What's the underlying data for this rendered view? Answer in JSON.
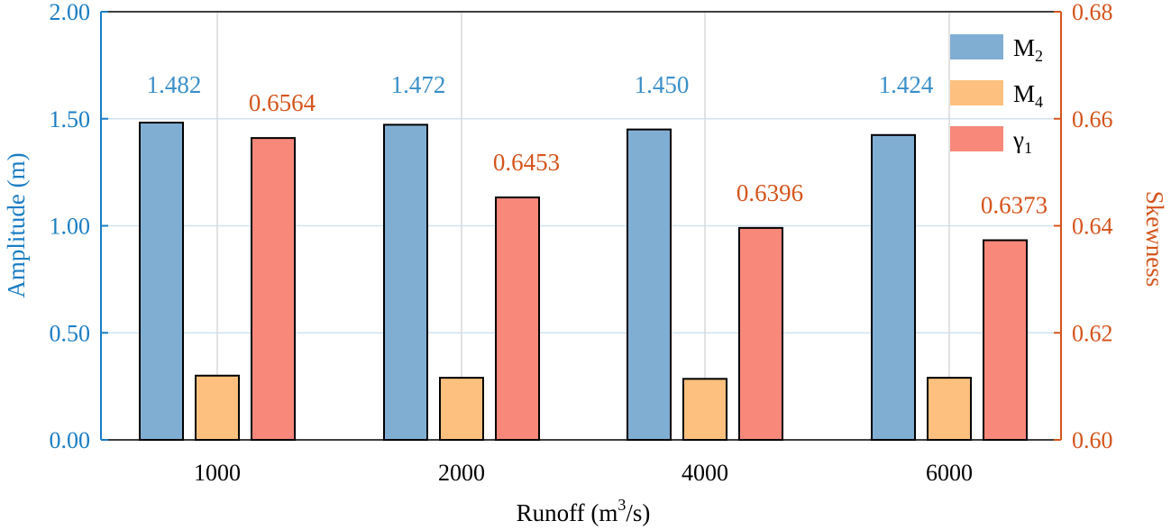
{
  "chart_data": {
    "type": "bar",
    "categories": [
      "1000",
      "2000",
      "4000",
      "6000"
    ],
    "series": [
      {
        "name": "M2",
        "axis": "left",
        "color": "#80aed3",
        "values": [
          1.482,
          1.472,
          1.45,
          1.424
        ],
        "labels": [
          "1.482",
          "1.472",
          "1.450",
          "1.424"
        ]
      },
      {
        "name": "M4",
        "axis": "left",
        "color": "#fec07e",
        "values": [
          0.3,
          0.29,
          0.285,
          0.29
        ]
      },
      {
        "name": "γ1",
        "axis": "right",
        "color": "#f8887a",
        "values": [
          0.6564,
          0.6453,
          0.6396,
          0.6373
        ],
        "labels": [
          "0.6564",
          "0.6453",
          "0.6396",
          "0.6373"
        ]
      }
    ],
    "legend": [
      {
        "base": "M",
        "sub": "2"
      },
      {
        "base": "M",
        "sub": "4"
      },
      {
        "base": "γ",
        "sub": "1"
      }
    ],
    "legend_position": "top-right",
    "xlabel": {
      "pre": "Runoff (m",
      "sup": "3",
      "post": "/s)"
    },
    "ylabel_left": "Amplitude (m)",
    "ylabel_right": "Skewness",
    "ylim_left": [
      0,
      2
    ],
    "ylim_right": [
      0.6,
      0.68
    ],
    "yticks_left": [
      "0.00",
      "0.50",
      "1.00",
      "1.50",
      "2.00"
    ],
    "yticks_right": [
      "0.60",
      "0.62",
      "0.64",
      "0.66",
      "0.68"
    ],
    "grid": true,
    "colors": {
      "left_axis": "#1a7dc4",
      "right_axis": "#d4541c"
    }
  }
}
